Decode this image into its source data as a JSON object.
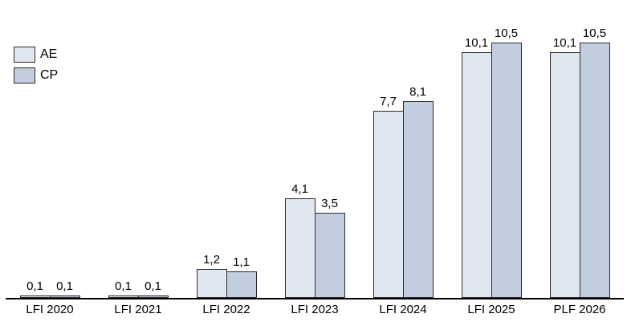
{
  "chart_data": {
    "type": "bar",
    "title": "",
    "categories": [
      "LFI 2020",
      "LFI 2021",
      "LFI 2022",
      "LFI 2023",
      "LFI 2024",
      "LFI 2025",
      "PLF 2026"
    ],
    "series": [
      {
        "name": "AE",
        "color": "#e1e7f1",
        "values": [
          0.1,
          0.1,
          1.2,
          4.1,
          7.7,
          10.1,
          10.1
        ],
        "labels": [
          "0,1",
          "0,1",
          "1,2",
          "4,1",
          "7,7",
          "10,1",
          "10,1"
        ]
      },
      {
        "name": "CP",
        "color": "#c3cde0",
        "values": [
          0.1,
          0.1,
          1.1,
          3.5,
          8.1,
          10.5,
          10.5
        ],
        "labels": [
          "0,1",
          "0,1",
          "1,1",
          "3,5",
          "8,1",
          "10,5",
          "10,5"
        ]
      }
    ],
    "xlabel": "",
    "ylabel": "",
    "ylim": [
      0,
      12.25
    ],
    "grid": false,
    "legend_position": "top-left",
    "decimal_separator": ","
  },
  "colors": {
    "background": "#ffffff",
    "bar_border": "#2b2b2b",
    "axis_line": "#000000",
    "text": "#000000"
  }
}
